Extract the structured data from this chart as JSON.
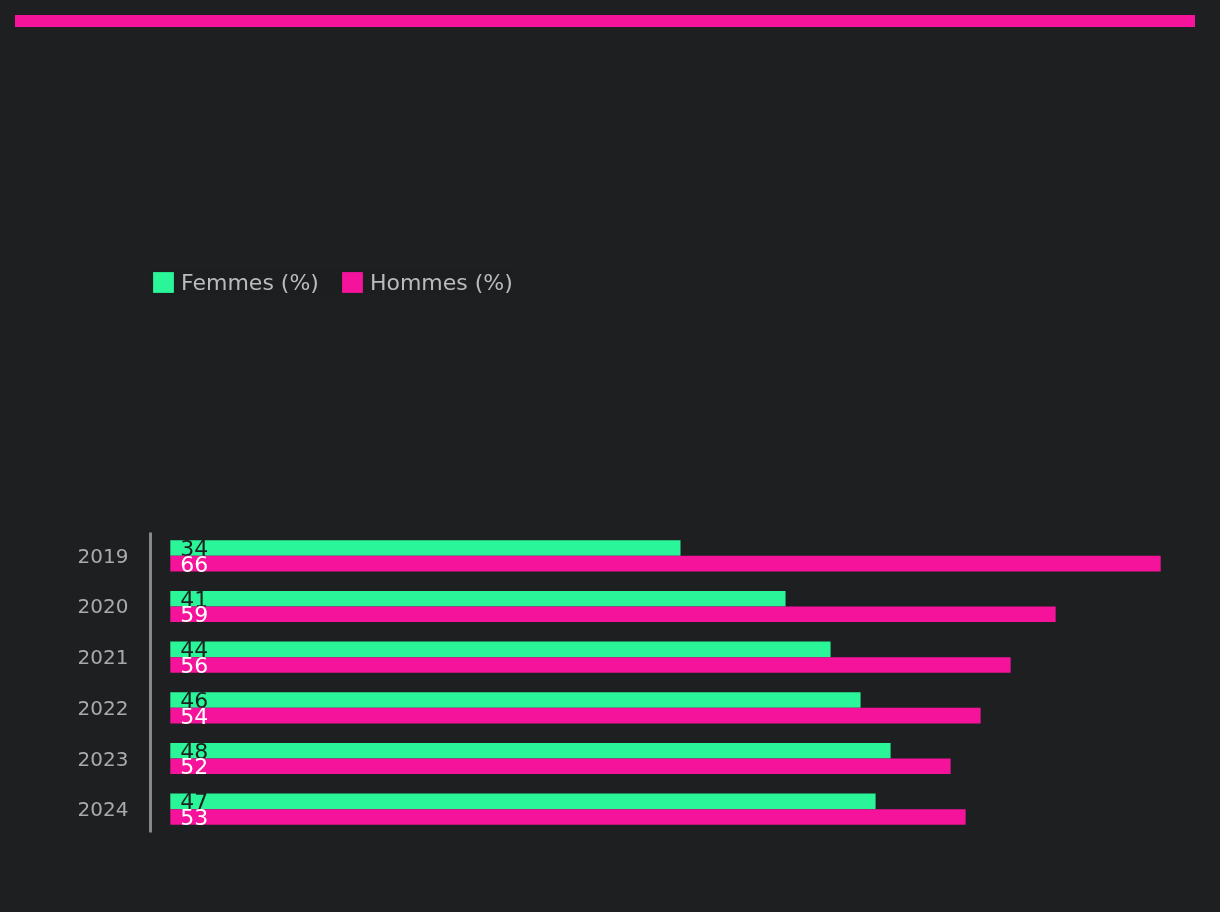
{
  "chart_data": {
    "type": "bar",
    "orientation": "horizontal",
    "categories": [
      "2019",
      "2020",
      "2021",
      "2022",
      "2023",
      "2024"
    ],
    "series": [
      {
        "name": "Femmes (%)",
        "color": "#2af598",
        "values": [
          34,
          41,
          44,
          46,
          48,
          47
        ]
      },
      {
        "name": "Hommes (%)",
        "color": "#f5139b",
        "values": [
          66,
          59,
          56,
          54,
          52,
          53
        ]
      }
    ],
    "tick_labels": "y",
    "data_labels": true,
    "grid": false,
    "legend": "top left"
  }
}
